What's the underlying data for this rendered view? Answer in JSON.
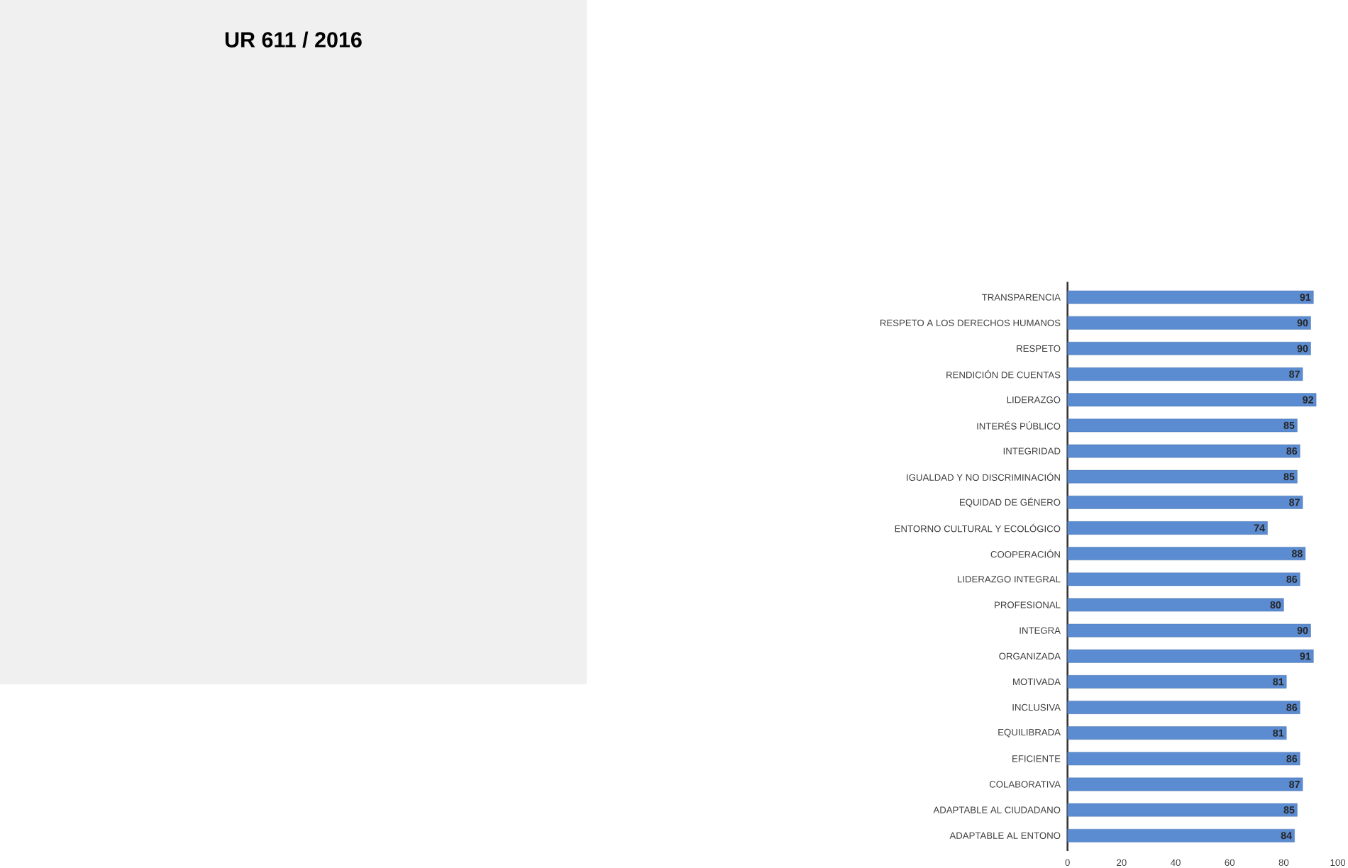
{
  "chart_data": {
    "type": "bar",
    "orientation": "horizontal",
    "title": "UR 611 / 2016",
    "categories": [
      "TRANSPARENCIA",
      "RESPETO A LOS DERECHOS HUMANOS",
      "RESPETO",
      "RENDICIÓN DE CUENTAS",
      "LIDERAZGO",
      "INTERÉS PÚBLICO",
      "INTEGRIDAD",
      "IGUALDAD Y NO DISCRIMINACIÓN",
      "EQUIDAD DE GÉNERO",
      "ENTORNO CULTURAL Y ECOLÓGICO",
      "COOPERACIÓN",
      "LIDERAZGO INTEGRAL",
      "PROFESIONAL",
      "INTEGRA",
      "ORGANIZADA",
      "MOTIVADA",
      "INCLUSIVA",
      "EQUILIBRADA",
      "EFICIENTE",
      "COLABORATIVA",
      "ADAPTABLE AL CIUDADANO",
      "ADAPTABLE AL ENTONO"
    ],
    "values": [
      91,
      90,
      90,
      87,
      92,
      85,
      86,
      85,
      87,
      74,
      88,
      86,
      80,
      90,
      91,
      81,
      86,
      81,
      86,
      87,
      85,
      84
    ],
    "color": "#5b8bd0",
    "data_labels": true,
    "xlim": [
      0,
      100
    ],
    "xticks": [
      0,
      20,
      40,
      60,
      80,
      100
    ]
  }
}
